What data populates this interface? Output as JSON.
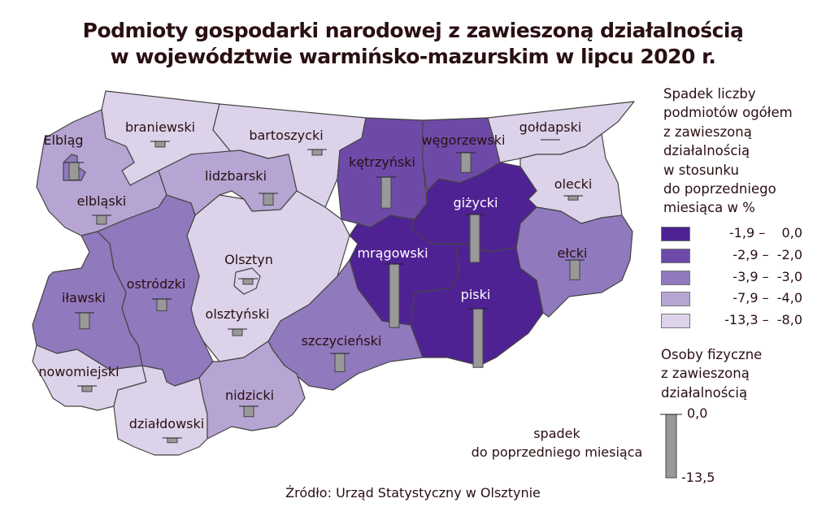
{
  "title": {
    "line1": "Podmioty gospodarki narodowej z zawieszoną działalnością",
    "line2": "w województwie warmińsko-mazurskim w lipcu 2020 r."
  },
  "legend_choropleth": {
    "title_lines": [
      "Spadek liczby",
      "podmiotów ogółem",
      "z zawieszoną",
      "działalnością",
      "w stosunku",
      "do poprzedniego",
      "miesiąca w %"
    ],
    "classes": [
      {
        "label": "-1,9 –    0,0",
        "color": "#4f2293"
      },
      {
        "label": "-2,9 –  -2,0",
        "color": "#6e4aa8"
      },
      {
        "label": "-3,9 –  -3,0",
        "color": "#9079bd"
      },
      {
        "label": "-7,9 –  -4,0",
        "color": "#b6a5d3"
      },
      {
        "label": "-13,3 –  -8,0",
        "color": "#dcd3ea"
      }
    ]
  },
  "legend_bars": {
    "title_lines": [
      "Osoby fizyczne",
      "z zawieszoną",
      "działalnością"
    ],
    "caption_lines": [
      "spadek",
      "do poprzedniego miesiąca"
    ],
    "max_label": "0,0",
    "min_label": "-13,5",
    "bar_color": "#999999"
  },
  "source": "Źródło: Urząd Statystyczny w Olsztynie",
  "chart_data": {
    "type": "choropleth-with-bars",
    "bar_scale": [
      0,
      -13.5
    ],
    "districts": [
      {
        "id": "elblag",
        "name": "Elbląg",
        "class": 2,
        "bar_value": -3.7
      },
      {
        "id": "braniewski",
        "name": "braniewski",
        "class": 4,
        "bar_value": -1.2
      },
      {
        "id": "bartoszycki",
        "name": "bartoszycki",
        "class": 4,
        "bar_value": -1.2
      },
      {
        "id": "lidzbarski",
        "name": "lidzbarski",
        "class": 3,
        "bar_value": -2.5
      },
      {
        "id": "elblaski",
        "name": "elbląski",
        "class": 3,
        "bar_value": -1.9
      },
      {
        "id": "ketrzynski",
        "name": "kętrzyński",
        "class": 1,
        "bar_value": -6.6
      },
      {
        "id": "wegorzewski",
        "name": "węgorzewski",
        "class": 1,
        "bar_value": -4.2
      },
      {
        "id": "goldapski",
        "name": "gołdapski",
        "class": 4,
        "bar_value": 0.0
      },
      {
        "id": "olecki",
        "name": "olecki",
        "class": 4,
        "bar_value": -0.9
      },
      {
        "id": "gizycki",
        "name": "giżycki",
        "class": 0,
        "bar_value": -10.2
      },
      {
        "id": "mragowski",
        "name": "mrągowski",
        "class": 0,
        "bar_value": -13.5
      },
      {
        "id": "piski",
        "name": "piski",
        "class": 0,
        "bar_value": -12.5
      },
      {
        "id": "elcki",
        "name": "ełcki",
        "class": 2,
        "bar_value": -4.2
      },
      {
        "id": "olsztynski",
        "name": "olsztyński",
        "class": 4,
        "bar_value": -1.4
      },
      {
        "id": "olsztyn",
        "name": "Olsztyn",
        "class": 4,
        "bar_value": -1.2
      },
      {
        "id": "ostrodzki",
        "name": "ostródzki",
        "class": 2,
        "bar_value": -2.5
      },
      {
        "id": "ilawski",
        "name": "iławski",
        "class": 2,
        "bar_value": -3.4
      },
      {
        "id": "szczycienski",
        "name": "szczycieński",
        "class": 2,
        "bar_value": -3.9
      },
      {
        "id": "nowomiejski",
        "name": "nowomiejski",
        "class": 4,
        "bar_value": -1.2
      },
      {
        "id": "nidzicki",
        "name": "nidzicki",
        "class": 3,
        "bar_value": -2.2
      },
      {
        "id": "dzialdowski",
        "name": "działdowski",
        "class": 4,
        "bar_value": -1.0
      }
    ]
  }
}
